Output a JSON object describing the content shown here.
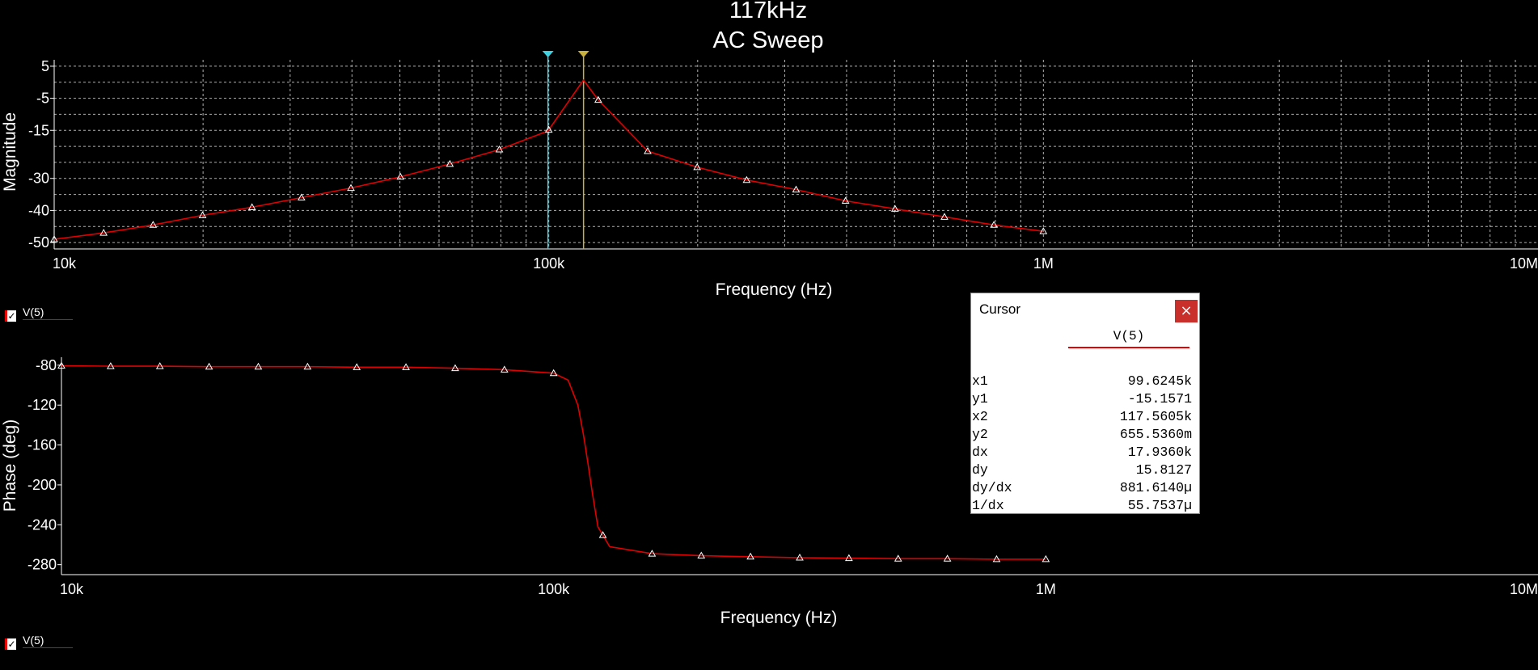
{
  "chart_data": [
    {
      "type": "line",
      "title": "117kHz",
      "subtitle": "AC Sweep",
      "xlabel": "Frequency (Hz)",
      "ylabel": "Magnitude",
      "xscale": "log",
      "xlim": [
        10000,
        10000000
      ],
      "ylim": [
        -52,
        7
      ],
      "x_ticks": [
        {
          "value": 10000,
          "label": "10k"
        },
        {
          "value": 100000,
          "label": "100k"
        },
        {
          "value": 1000000,
          "label": "1M"
        },
        {
          "value": 10000000,
          "label": "10M"
        }
      ],
      "y_ticks": [
        {
          "value": 5,
          "label": "5"
        },
        {
          "value": -5,
          "label": "-5"
        },
        {
          "value": -15,
          "label": "-15"
        },
        {
          "value": -30,
          "label": "-30"
        },
        {
          "value": -40,
          "label": "-40"
        },
        {
          "value": -50,
          "label": "-50"
        }
      ],
      "grid": true,
      "series": [
        {
          "name": "V(5)",
          "color": "#e00000",
          "x": [
            10000,
            12589,
            15849,
            19953,
            25119,
            31623,
            39811,
            50119,
            63096,
            79433,
            99624,
            117560,
            125893,
            158489,
            199526,
            251189,
            316228,
            398107,
            501187,
            630957,
            794328,
            1000000
          ],
          "y": [
            -49,
            -47,
            -44.5,
            -41.5,
            -39,
            -36,
            -33,
            -29.5,
            -25.5,
            -21,
            -15.2,
            0.7,
            -5.5,
            -21.5,
            -26.5,
            -30.5,
            -33.5,
            -37,
            -39.5,
            -42,
            -44.5,
            -46.5
          ]
        }
      ],
      "cursors": [
        {
          "name": "x1",
          "x": 99624.5,
          "color": "#40d0e0"
        },
        {
          "name": "x2",
          "x": 117560.5,
          "color": "#c8b040"
        }
      ],
      "legend": {
        "label": "V(5)",
        "position": "bottom-left",
        "checked": true
      }
    },
    {
      "type": "line",
      "xlabel": "Frequency (Hz)",
      "ylabel": "Phase (deg)",
      "xscale": "log",
      "xlim": [
        10000,
        10000000
      ],
      "ylim": [
        -290,
        -72
      ],
      "x_ticks": [
        {
          "value": 10000,
          "label": "10k"
        },
        {
          "value": 100000,
          "label": "100k"
        },
        {
          "value": 1000000,
          "label": "1M"
        },
        {
          "value": 10000000,
          "label": "10M"
        }
      ],
      "y_ticks": [
        {
          "value": -80,
          "label": "-80"
        },
        {
          "value": -120,
          "label": "-120"
        },
        {
          "value": -160,
          "label": "-160"
        },
        {
          "value": -200,
          "label": "-200"
        },
        {
          "value": -240,
          "label": "-240"
        },
        {
          "value": -280,
          "label": "-280"
        }
      ],
      "grid": false,
      "series": [
        {
          "name": "V(5)",
          "color": "#e00000",
          "x": [
            10000,
            12589,
            15849,
            19953,
            25119,
            31623,
            39811,
            50119,
            63096,
            79433,
            100000,
            107000,
            112000,
            115000,
            117560,
            120000,
            123000,
            130000,
            158489,
            199526,
            251189,
            316228,
            398107,
            501187,
            630957,
            794328,
            1000000
          ],
          "y": [
            -80.5,
            -81,
            -81,
            -81.5,
            -81.5,
            -81.5,
            -82,
            -82,
            -83,
            -84.5,
            -88,
            -95,
            -120,
            -150,
            -180,
            -210,
            -242,
            -262,
            -269,
            -271,
            -272,
            -273,
            -273.5,
            -274,
            -274,
            -274.5,
            -274.5
          ]
        }
      ],
      "legend": {
        "label": "V(5)",
        "position": "bottom-left",
        "checked": true
      }
    }
  ],
  "cursor_window": {
    "title": "Cursor",
    "close_glyph": "×",
    "series_label": "V(5)",
    "rows": [
      {
        "label": "x1",
        "value": "99.6245k"
      },
      {
        "label": "y1",
        "value": "-15.1571"
      },
      {
        "label": "x2",
        "value": "117.5605k"
      },
      {
        "label": "y2",
        "value": "655.5360m"
      },
      {
        "label": "dx",
        "value": "17.9360k"
      },
      {
        "label": "dy",
        "value": "15.8127"
      },
      {
        "label": "dy/dx",
        "value": "881.6140µ"
      },
      {
        "label": "1/dx",
        "value": "55.7537µ"
      }
    ]
  }
}
